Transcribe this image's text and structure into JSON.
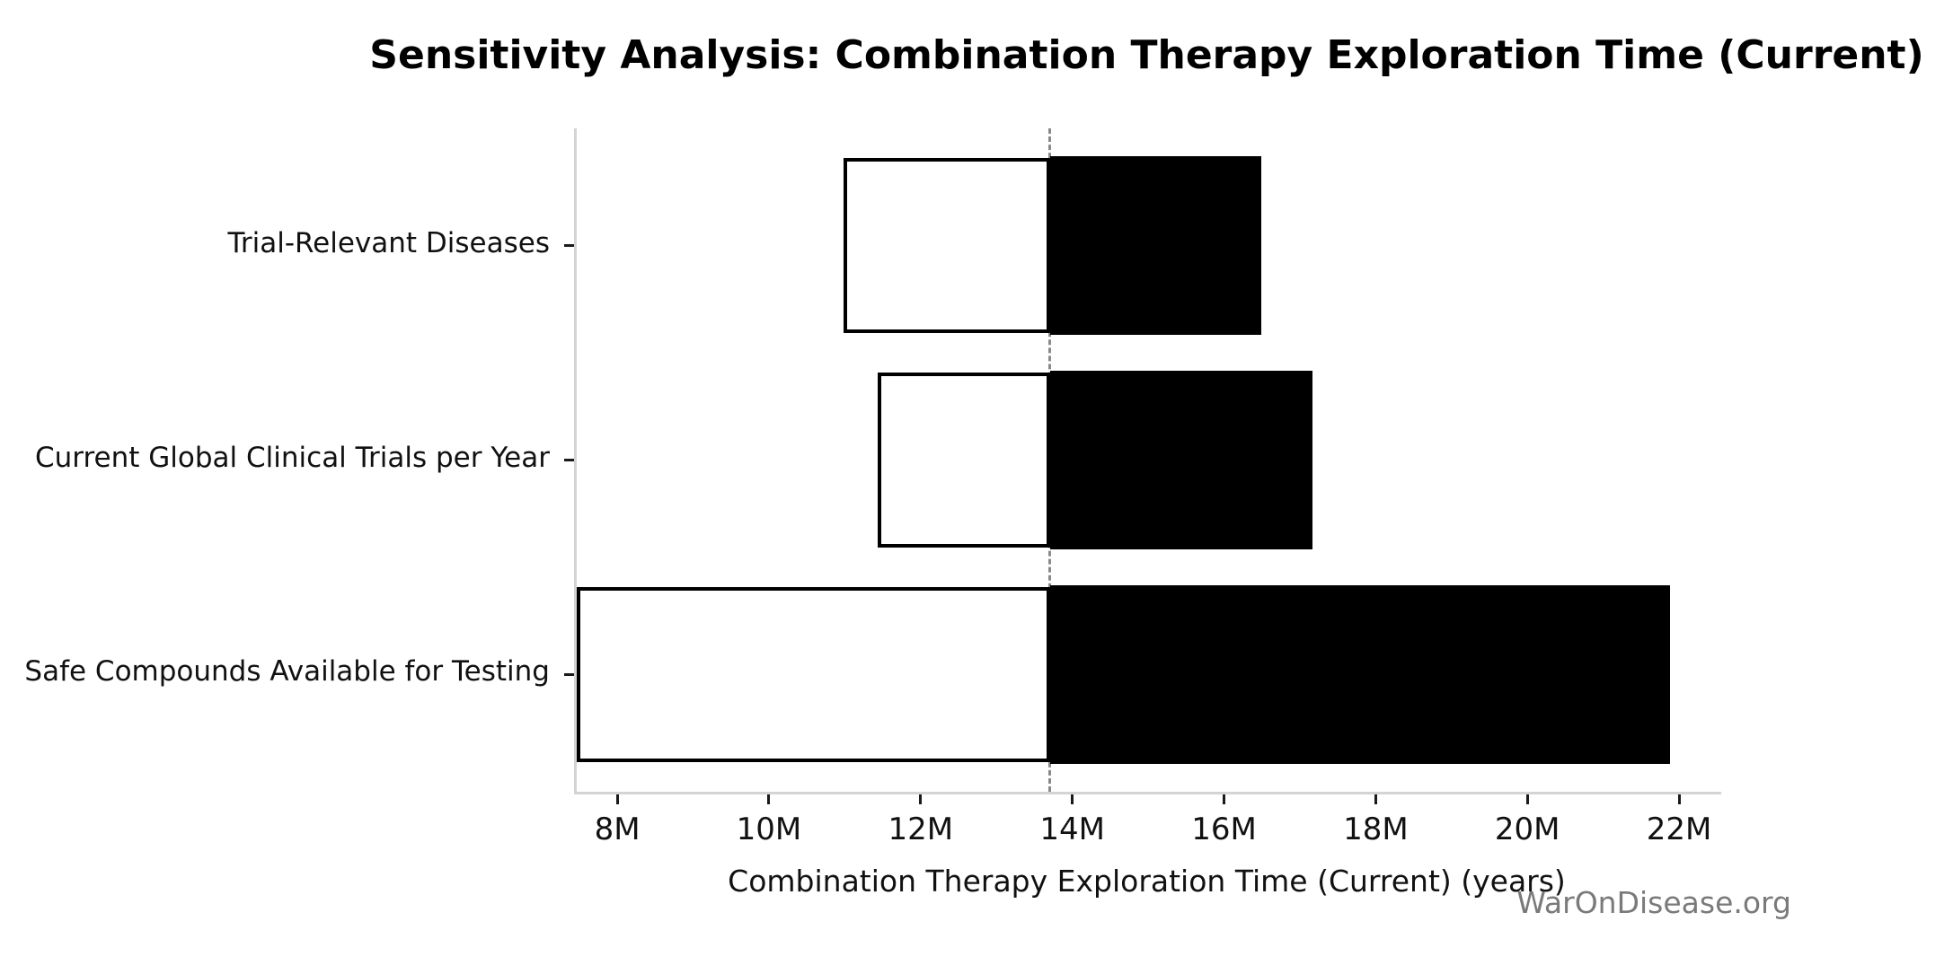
{
  "title": "Sensitivity Analysis: Combination Therapy Exploration Time (Current)",
  "watermark": "WarOnDisease.org",
  "chart_data": {
    "type": "bar",
    "subtype": "tornado-sensitivity",
    "orientation": "horizontal",
    "title": "Sensitivity Analysis: Combination Therapy Exploration Time (Current)",
    "xlabel": "Combination Therapy Exploration Time (Current) (years)",
    "ylabel": "",
    "grid": false,
    "legend": "none",
    "baseline_value": 13.67,
    "value_unit": "millions of years",
    "categories": [
      "Trial-Relevant Diseases",
      "Current Global Clinical Trials per Year",
      "Safe Compounds Available for Testing"
    ],
    "series": [
      {
        "name": "low_estimate",
        "values": [
          10.95,
          11.4,
          7.43
        ]
      },
      {
        "name": "high_estimate",
        "values": [
          16.45,
          17.13,
          21.85
        ]
      }
    ],
    "xlim": [
      7.43,
      22.52
    ],
    "xticks": [
      {
        "value": 8,
        "label": "8M"
      },
      {
        "value": 10,
        "label": "10M"
      },
      {
        "value": 12,
        "label": "12M"
      },
      {
        "value": 14,
        "label": "14M"
      },
      {
        "value": 16,
        "label": "16M"
      },
      {
        "value": 18,
        "label": "18M"
      },
      {
        "value": 20,
        "label": "20M"
      },
      {
        "value": 22,
        "label": "22M"
      }
    ],
    "colors": {
      "below_baseline_fill": "#ffffff",
      "above_baseline_fill": "#000000",
      "bar_edge": "#000000",
      "baseline_line": "#8a8a8a",
      "spine": "#d4d4d4",
      "tick": "#1a1a1a",
      "text": "#111111",
      "watermark": "#7a7a7a"
    }
  }
}
